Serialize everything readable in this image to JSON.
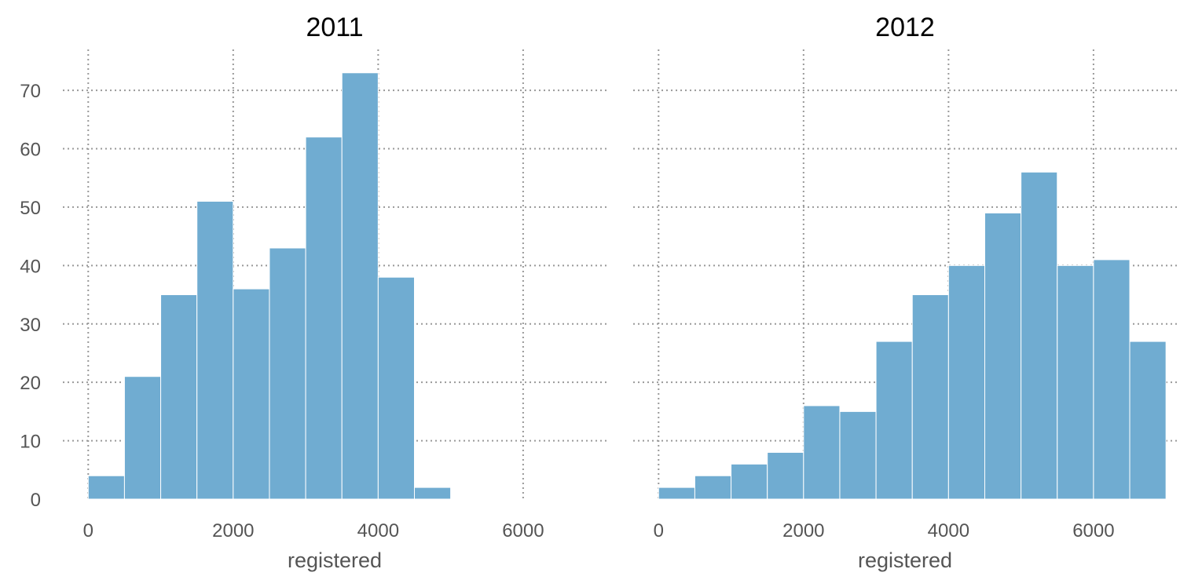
{
  "chart_data": [
    {
      "type": "bar",
      "title": "2011",
      "xlabel": "registered",
      "ylabel": "",
      "bin_width": 500,
      "bin_starts": [
        0,
        500,
        1000,
        1500,
        2000,
        2500,
        3000,
        3500,
        4000,
        4500
      ],
      "values": [
        4,
        21,
        35,
        51,
        36,
        43,
        62,
        73,
        38,
        2
      ],
      "xlim": [
        -350,
        7150
      ],
      "ylim": [
        0,
        77
      ],
      "xticks": [
        0,
        2000,
        4000,
        6000
      ],
      "yticks": [
        0,
        10,
        20,
        30,
        40,
        50,
        60,
        70
      ],
      "color": "#70acd1",
      "grid": true
    },
    {
      "type": "bar",
      "title": "2012",
      "xlabel": "registered",
      "ylabel": "",
      "bin_width": 500,
      "bin_starts": [
        0,
        500,
        1000,
        1500,
        2000,
        2500,
        3000,
        3500,
        4000,
        4500,
        5000,
        5500,
        6000,
        6500
      ],
      "values": [
        2,
        4,
        6,
        8,
        16,
        15,
        27,
        35,
        40,
        49,
        56,
        40,
        41,
        27
      ],
      "xlim": [
        -350,
        7150
      ],
      "ylim": [
        0,
        77
      ],
      "xticks": [
        0,
        2000,
        4000,
        6000
      ],
      "yticks": [
        0,
        10,
        20,
        30,
        40,
        50,
        60,
        70
      ],
      "color": "#70acd1",
      "grid": true
    }
  ]
}
